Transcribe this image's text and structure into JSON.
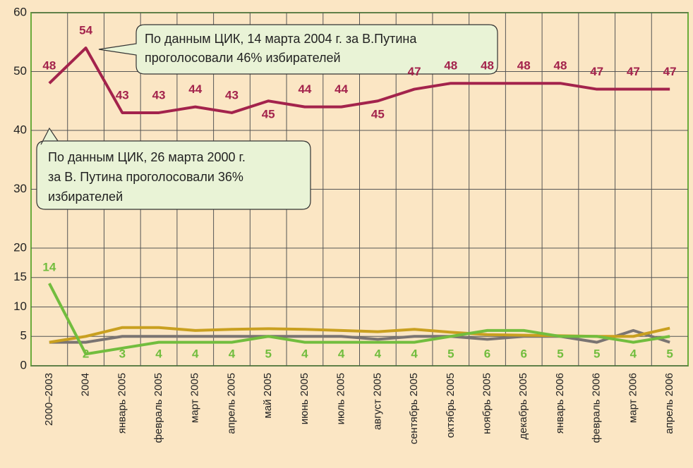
{
  "chart_data": {
    "type": "line",
    "categories": [
      "2000–2003",
      "2004",
      "январь 2005",
      "февраль 2005",
      "март 2005",
      "апрель 2005",
      "май 2005",
      "июнь 2005",
      "июль 2005",
      "август 2005",
      "сентябрь 2005",
      "октябрь 2005",
      "ноябрь 2005",
      "декабрь 2005",
      "январь 2006",
      "февраль 2006",
      "март 2006",
      "апрель 2006"
    ],
    "series": [
      {
        "color": "#a3234c",
        "labeled": true,
        "values": [
          48,
          54,
          43,
          43,
          44,
          43,
          45,
          44,
          44,
          45,
          47,
          48,
          48,
          48,
          48,
          47,
          47,
          47
        ]
      },
      {
        "color": "#7a7472",
        "labeled": false,
        "values": [
          4,
          4,
          5,
          5,
          5,
          5,
          5,
          5,
          5,
          4.5,
          5,
          5,
          4.5,
          5,
          5,
          4,
          6,
          4
        ]
      },
      {
        "color": "#c9a020",
        "labeled": false,
        "values": [
          4,
          5,
          6.5,
          6.5,
          6,
          6.2,
          6.3,
          6.2,
          6,
          5.8,
          6.2,
          5.7,
          5.3,
          5.2,
          5.1,
          5,
          5,
          6.4
        ]
      },
      {
        "color": "#72bd3e",
        "labeled": true,
        "values": [
          14,
          2,
          3,
          4,
          4,
          4,
          5,
          4,
          4,
          4,
          4,
          5,
          6,
          6,
          5,
          5,
          4,
          5
        ]
      }
    ],
    "ylim": [
      0,
      60
    ],
    "yticks": [
      0,
      5,
      10,
      15,
      20,
      30,
      40,
      50,
      60
    ],
    "grid": true,
    "annotations": [
      [
        "По данным ЦИК, 14 марта 2004 г. за В.Путина",
        "проголосовали 46% избирателей"
      ],
      [
        "По данным ЦИК, 26 марта 2000 г.",
        "за В. Путина проголосовали 36%",
        "избирателей"
      ]
    ]
  }
}
